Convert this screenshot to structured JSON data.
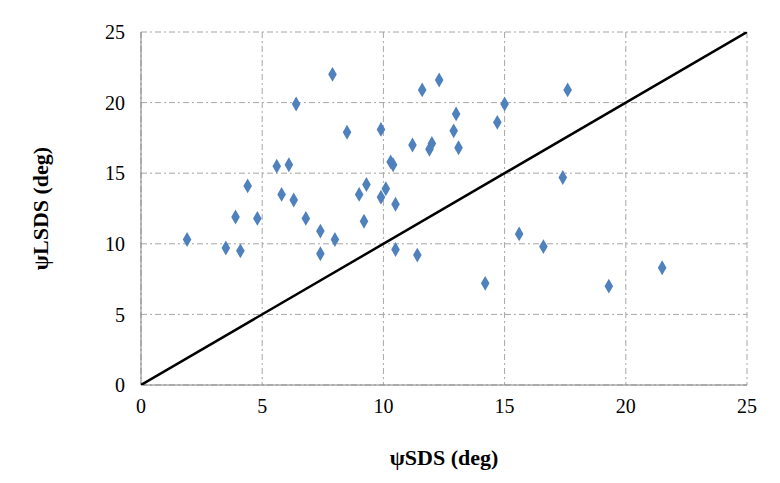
{
  "chart_data": {
    "type": "scatter",
    "xlabel": "ψSDS (deg)",
    "ylabel": "ψLSDS (deg)",
    "xlim": [
      0,
      25
    ],
    "ylim": [
      0,
      25
    ],
    "xticks": [
      0,
      5,
      10,
      15,
      20,
      25
    ],
    "yticks": [
      0,
      5,
      10,
      15,
      20,
      25
    ],
    "grid": true,
    "series": [
      {
        "type": "scatter",
        "color": "#4f81bd",
        "marker": "diamond",
        "x": [
          1.9,
          3.5,
          3.9,
          4.1,
          4.4,
          4.8,
          5.6,
          5.8,
          6.1,
          6.3,
          6.4,
          6.8,
          7.4,
          7.4,
          7.9,
          8.0,
          8.5,
          9.0,
          9.2,
          9.3,
          9.9,
          9.9,
          10.1,
          10.3,
          10.4,
          10.5,
          10.5,
          11.2,
          11.4,
          11.6,
          11.9,
          12.0,
          12.3,
          12.9,
          13.0,
          13.1,
          14.2,
          14.7,
          15.0,
          15.6,
          16.6,
          17.4,
          17.6,
          19.3,
          21.5
        ],
        "values": [
          10.3,
          9.7,
          11.9,
          9.5,
          14.1,
          11.8,
          15.5,
          13.5,
          15.6,
          13.1,
          19.9,
          11.8,
          10.9,
          9.3,
          22.0,
          10.3,
          17.9,
          13.5,
          11.6,
          14.2,
          18.1,
          13.3,
          13.9,
          15.8,
          15.6,
          9.6,
          12.8,
          17.0,
          9.2,
          20.9,
          16.7,
          17.1,
          21.6,
          18.0,
          19.2,
          16.8,
          7.2,
          18.6,
          19.9,
          10.7,
          9.8,
          14.7,
          20.9,
          7.0,
          8.3
        ]
      },
      {
        "type": "line",
        "color": "#000000",
        "line_style": "solid",
        "x": [
          0,
          25
        ],
        "values": [
          0,
          25
        ]
      }
    ]
  }
}
